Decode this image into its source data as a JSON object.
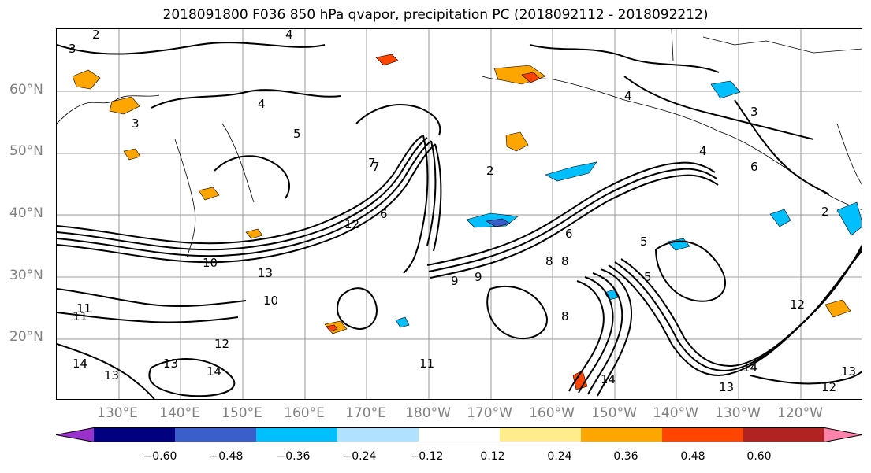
{
  "title": "2018091800 F036 850 hPa qvapor, precipitation PC (2018092112 - 2018092212)",
  "lat_labels": [
    "60°N",
    "50°N",
    "40°N",
    "30°N",
    "20°N"
  ],
  "lon_labels": [
    "130°E",
    "140°E",
    "150°E",
    "160°E",
    "170°E",
    "180°W",
    "170°W",
    "160°W",
    "150°W",
    "140°W",
    "130°W",
    "120°W"
  ],
  "colorbar": {
    "colors": [
      "#9932cc",
      "#000080",
      "#3a5fcd",
      "#00bfff",
      "#b0e2ff",
      "#ffffff",
      "#ffec8b",
      "#ffa500",
      "#ff4500",
      "#b22222",
      "#ff82ab"
    ],
    "ticks": [
      "−0.60",
      "−0.48",
      "−0.36",
      "−0.24",
      "−0.12",
      "0.12",
      "0.24",
      "0.36",
      "0.48",
      "0.60"
    ]
  },
  "contour_labels": [
    "2",
    "3",
    "4",
    "5",
    "6",
    "7",
    "8",
    "9",
    "10",
    "11",
    "12",
    "13",
    "14",
    "4",
    "3",
    "2",
    "12",
    "13",
    "14",
    "11",
    "10",
    "9",
    "8",
    "7",
    "6",
    "5",
    "4",
    "3",
    "2",
    "13",
    "14",
    "12",
    "13",
    "8",
    "6",
    "5",
    "4",
    "11",
    "12",
    "14",
    "13"
  ]
}
